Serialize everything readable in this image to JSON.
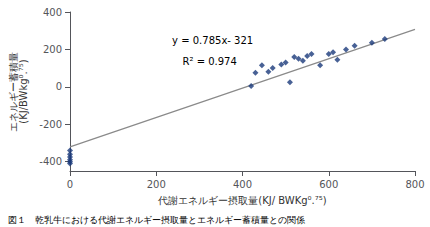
{
  "chart_data": {
    "type": "scatter",
    "xlabel": "代謝エネルギー摂取量(KJ/ BWKg⁰.⁷⁵)",
    "ylabel": "エネルギー蓄積量\n(KJ/BWkg⁰.⁷⁵)",
    "caption": "図１　乾乳牛における代謝エネルギー摂取量とエネルギー蓄積量との関係",
    "annotations": [
      "y = 0.785x- 321",
      "R² = 0.974"
    ],
    "series": [
      {
        "type": "scatter",
        "color": "#1a3a7a",
        "marker": "diamond",
        "x": [
          0,
          0,
          0,
          0,
          0,
          0,
          420,
          430,
          445,
          460,
          470,
          490,
          500,
          510,
          520,
          530,
          540,
          550,
          560,
          580,
          600,
          610,
          620,
          640,
          660,
          700,
          730
        ],
        "values": [
          -340,
          -360,
          -375,
          -390,
          -400,
          -410,
          5,
          75,
          115,
          80,
          100,
          120,
          130,
          25,
          160,
          150,
          140,
          165,
          175,
          115,
          175,
          185,
          145,
          200,
          220,
          235,
          255
        ]
      },
      {
        "type": "line",
        "color": "#8a8a8a",
        "line_style": "solid",
        "x": [
          0,
          800
        ],
        "values": [
          -321,
          307
        ]
      }
    ],
    "xlim": [
      0,
      800
    ],
    "ylim": [
      -450,
      400
    ],
    "xticks": [
      0,
      200,
      400,
      600,
      800
    ],
    "yticks": [
      -400,
      -200,
      0,
      200,
      400
    ],
    "grid": false
  }
}
